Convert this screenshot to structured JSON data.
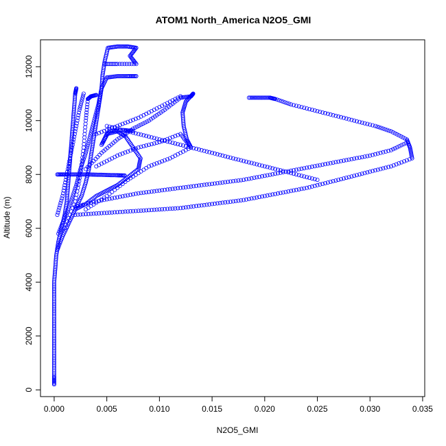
{
  "chart_data": {
    "type": "scatter",
    "title": "ATOM1 North_America N2O5_GMI",
    "xlabel": "N2O5_GMI",
    "ylabel": "Altitude (m)",
    "xlim": [
      -0.0013,
      0.0352
    ],
    "ylim": [
      -250,
      13000
    ],
    "x_ticks": [
      0.0,
      0.005,
      0.01,
      0.015,
      0.02,
      0.025,
      0.03,
      0.035
    ],
    "x_tick_labels": [
      "0.000",
      "0.005",
      "0.010",
      "0.015",
      "0.020",
      "0.025",
      "0.030",
      "0.035"
    ],
    "y_ticks": [
      0,
      2000,
      4000,
      6000,
      8000,
      10000,
      12000
    ],
    "y_tick_labels": [
      "0",
      "2000",
      "4000",
      "6000",
      "8000",
      "10000",
      "12000"
    ],
    "grid": false,
    "legend": "none",
    "marker": "open-circle",
    "color": "#0000ff",
    "series": [
      {
        "points": [
          [
            0.0,
            200
          ],
          [
            0.0,
            500
          ],
          [
            0.0,
            1000
          ],
          [
            0.0,
            1500
          ],
          [
            0.0,
            2000
          ],
          [
            0.0,
            2500
          ],
          [
            0.0,
            3000
          ],
          [
            0.0,
            3500
          ],
          [
            0.0,
            4000
          ],
          [
            0.0001,
            4500
          ],
          [
            0.0002,
            5000
          ],
          [
            0.0004,
            5500
          ],
          [
            0.0007,
            6000
          ],
          [
            0.001,
            6500
          ],
          [
            0.0012,
            7000
          ],
          [
            0.0013,
            7500
          ],
          [
            0.0014,
            8000
          ],
          [
            0.0015,
            8500
          ],
          [
            0.0016,
            9000
          ],
          [
            0.0017,
            9500
          ],
          [
            0.0018,
            10000
          ],
          [
            0.0019,
            10500
          ],
          [
            0.002,
            11000
          ],
          [
            0.0021,
            11200
          ]
        ]
      },
      {
        "points": [
          [
            0.0003,
            5200
          ],
          [
            0.0008,
            5700
          ],
          [
            0.0014,
            6200
          ],
          [
            0.002,
            6700
          ],
          [
            0.0026,
            7200
          ],
          [
            0.003,
            7700
          ],
          [
            0.0033,
            8200
          ],
          [
            0.0035,
            8700
          ],
          [
            0.0037,
            9200
          ],
          [
            0.0039,
            9700
          ],
          [
            0.0041,
            10200
          ],
          [
            0.0043,
            10700
          ],
          [
            0.0045,
            11200
          ],
          [
            0.0046,
            11700
          ],
          [
            0.0048,
            12200
          ],
          [
            0.0051,
            12700
          ],
          [
            0.006,
            12750
          ],
          [
            0.007,
            12750
          ],
          [
            0.0078,
            12700
          ],
          [
            0.0072,
            12400
          ],
          [
            0.0078,
            12100
          ],
          [
            0.006,
            12100
          ],
          [
            0.0048,
            12100
          ]
        ]
      },
      {
        "points": [
          [
            0.0004,
            5800
          ],
          [
            0.001,
            6400
          ],
          [
            0.0016,
            7000
          ],
          [
            0.0021,
            7600
          ],
          [
            0.0025,
            8200
          ],
          [
            0.003,
            8800
          ],
          [
            0.0034,
            9400
          ],
          [
            0.0038,
            10000
          ],
          [
            0.0042,
            10600
          ],
          [
            0.0045,
            11200
          ],
          [
            0.005,
            11600
          ],
          [
            0.006,
            11650
          ],
          [
            0.007,
            11650
          ],
          [
            0.0078,
            11650
          ]
        ]
      },
      {
        "points": [
          [
            0.0003,
            8000
          ],
          [
            0.001,
            8000
          ],
          [
            0.002,
            8000
          ],
          [
            0.003,
            8000
          ],
          [
            0.004,
            7990
          ],
          [
            0.005,
            7980
          ],
          [
            0.006,
            7970
          ],
          [
            0.0067,
            7960
          ]
        ]
      },
      {
        "points": [
          [
            0.002,
            6700
          ],
          [
            0.003,
            6900
          ],
          [
            0.004,
            7200
          ],
          [
            0.005,
            7400
          ],
          [
            0.006,
            7600
          ],
          [
            0.007,
            7900
          ],
          [
            0.008,
            8200
          ],
          [
            0.0082,
            8600
          ],
          [
            0.0075,
            9000
          ],
          [
            0.0068,
            9400
          ],
          [
            0.006,
            9600
          ],
          [
            0.005,
            9500
          ],
          [
            0.0045,
            9100
          ],
          [
            0.0052,
            9600
          ],
          [
            0.0065,
            9650
          ],
          [
            0.0075,
            9620
          ]
        ]
      },
      {
        "points": [
          [
            0.003,
            8200
          ],
          [
            0.0045,
            8800
          ],
          [
            0.006,
            9300
          ],
          [
            0.0075,
            9700
          ],
          [
            0.009,
            10000
          ],
          [
            0.0105,
            10400
          ],
          [
            0.012,
            10850
          ],
          [
            0.013,
            10900
          ],
          [
            0.0132,
            11000
          ],
          [
            0.0125,
            10700
          ],
          [
            0.0122,
            10300
          ],
          [
            0.0123,
            9800
          ],
          [
            0.0126,
            9300
          ],
          [
            0.013,
            9000
          ]
        ]
      },
      {
        "points": [
          [
            0.004,
            9500
          ],
          [
            0.006,
            9800
          ],
          [
            0.008,
            10100
          ],
          [
            0.01,
            10500
          ],
          [
            0.012,
            10900
          ]
        ]
      },
      {
        "points": [
          [
            0.004,
            8300
          ],
          [
            0.006,
            8700
          ],
          [
            0.008,
            9000
          ],
          [
            0.01,
            9200
          ],
          [
            0.012,
            9500
          ],
          [
            0.013,
            9000
          ],
          [
            0.011,
            8600
          ],
          [
            0.009,
            8300
          ],
          [
            0.007,
            7800
          ],
          [
            0.005,
            7200
          ],
          [
            0.003,
            6700
          ]
        ]
      },
      {
        "points": [
          [
            0.005,
            9800
          ],
          [
            0.007,
            9600
          ],
          [
            0.009,
            9400
          ],
          [
            0.011,
            9200
          ],
          [
            0.013,
            9000
          ],
          [
            0.015,
            8800
          ],
          [
            0.017,
            8600
          ],
          [
            0.019,
            8400
          ],
          [
            0.021,
            8200
          ],
          [
            0.023,
            8000
          ],
          [
            0.025,
            7800
          ]
        ]
      },
      {
        "points": [
          [
            0.0185,
            10850
          ],
          [
            0.0195,
            10850
          ],
          [
            0.0205,
            10850
          ],
          [
            0.021,
            10800
          ],
          [
            0.0225,
            10600
          ],
          [
            0.0245,
            10400
          ],
          [
            0.0265,
            10200
          ],
          [
            0.0285,
            10000
          ],
          [
            0.0305,
            9800
          ],
          [
            0.032,
            9600
          ],
          [
            0.0335,
            9300
          ],
          [
            0.0338,
            9000
          ],
          [
            0.034,
            8600
          ],
          [
            0.032,
            8300
          ],
          [
            0.03,
            8100
          ],
          [
            0.028,
            7900
          ],
          [
            0.026,
            7700
          ],
          [
            0.024,
            7500
          ],
          [
            0.022,
            7350
          ],
          [
            0.02,
            7200
          ],
          [
            0.018,
            7050
          ],
          [
            0.016,
            6950
          ],
          [
            0.014,
            6850
          ],
          [
            0.012,
            6750
          ],
          [
            0.01,
            6700
          ],
          [
            0.008,
            6650
          ],
          [
            0.006,
            6600
          ],
          [
            0.004,
            6550
          ],
          [
            0.002,
            6500
          ]
        ]
      },
      {
        "points": [
          [
            0.0336,
            9200
          ],
          [
            0.032,
            8900
          ],
          [
            0.03,
            8700
          ],
          [
            0.028,
            8550
          ],
          [
            0.026,
            8400
          ],
          [
            0.024,
            8250
          ],
          [
            0.022,
            8100
          ],
          [
            0.02,
            7950
          ],
          [
            0.018,
            7800
          ],
          [
            0.016,
            7700
          ],
          [
            0.014,
            7600
          ],
          [
            0.012,
            7500
          ],
          [
            0.01,
            7400
          ],
          [
            0.008,
            7300
          ],
          [
            0.006,
            7150
          ],
          [
            0.004,
            7000
          ],
          [
            0.002,
            6800
          ]
        ]
      },
      {
        "points": [
          [
            0.001,
            6000
          ],
          [
            0.002,
            7000
          ],
          [
            0.0025,
            8000
          ],
          [
            0.0028,
            9000
          ],
          [
            0.003,
            10000
          ],
          [
            0.0032,
            10800
          ],
          [
            0.0035,
            10900
          ],
          [
            0.004,
            10950
          ]
        ]
      },
      {
        "points": [
          [
            0.0003,
            6500
          ],
          [
            0.0008,
            7200
          ],
          [
            0.0012,
            8000
          ],
          [
            0.0016,
            8800
          ],
          [
            0.002,
            9600
          ],
          [
            0.0024,
            10400
          ],
          [
            0.0028,
            11000
          ]
        ]
      }
    ]
  }
}
